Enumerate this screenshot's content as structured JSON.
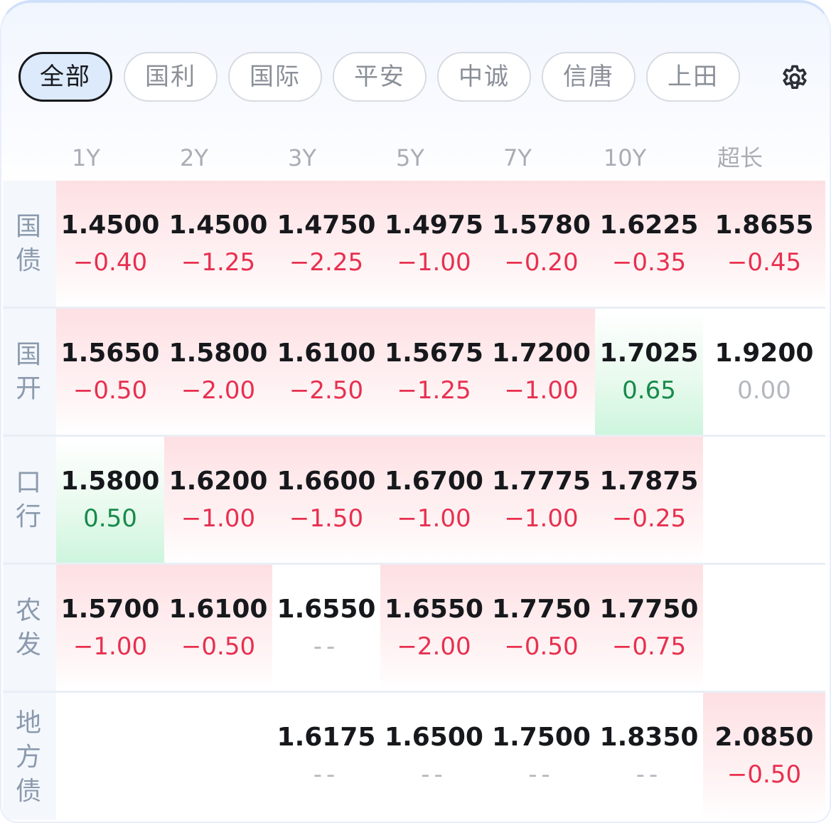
{
  "tabs": [
    {
      "label": "全部",
      "active": true
    },
    {
      "label": "国利",
      "active": false
    },
    {
      "label": "国际",
      "active": false
    },
    {
      "label": "平安",
      "active": false
    },
    {
      "label": "中诚",
      "active": false
    },
    {
      "label": "信唐",
      "active": false
    },
    {
      "label": "上田",
      "active": false
    }
  ],
  "settings_icon": "gear-icon",
  "columns": [
    "1Y",
    "2Y",
    "3Y",
    "5Y",
    "7Y",
    "10Y",
    "超长"
  ],
  "colors": {
    "down": "#e8304f",
    "up": "#178a4a",
    "flat": "#b4b8be",
    "active_tab_bg": "#dceafc"
  },
  "rows": [
    {
      "label_chars": [
        "国",
        "债"
      ],
      "cells": [
        {
          "value": "1.4500",
          "change": "−0.40",
          "trend": "down"
        },
        {
          "value": "1.4500",
          "change": "−1.25",
          "trend": "down"
        },
        {
          "value": "1.4750",
          "change": "−2.25",
          "trend": "down"
        },
        {
          "value": "1.4975",
          "change": "−1.00",
          "trend": "down"
        },
        {
          "value": "1.5780",
          "change": "−0.20",
          "trend": "down"
        },
        {
          "value": "1.6225",
          "change": "−0.35",
          "trend": "down"
        },
        {
          "value": "1.8655",
          "change": "−0.45",
          "trend": "down"
        }
      ]
    },
    {
      "label_chars": [
        "国",
        "开"
      ],
      "cells": [
        {
          "value": "1.5650",
          "change": "−0.50",
          "trend": "down"
        },
        {
          "value": "1.5800",
          "change": "−2.00",
          "trend": "down"
        },
        {
          "value": "1.6100",
          "change": "−2.50",
          "trend": "down"
        },
        {
          "value": "1.5675",
          "change": "−1.25",
          "trend": "down"
        },
        {
          "value": "1.7200",
          "change": "−1.00",
          "trend": "down"
        },
        {
          "value": "1.7025",
          "change": "0.65",
          "trend": "up"
        },
        {
          "value": "1.9200",
          "change": "0.00",
          "trend": "flat"
        }
      ]
    },
    {
      "label_chars": [
        "口",
        "行"
      ],
      "cells": [
        {
          "value": "1.5800",
          "change": "0.50",
          "trend": "up"
        },
        {
          "value": "1.6200",
          "change": "−1.00",
          "trend": "down"
        },
        {
          "value": "1.6600",
          "change": "−1.50",
          "trend": "down"
        },
        {
          "value": "1.6700",
          "change": "−1.00",
          "trend": "down"
        },
        {
          "value": "1.7775",
          "change": "−1.00",
          "trend": "down"
        },
        {
          "value": "1.7875",
          "change": "−0.25",
          "trend": "down"
        },
        null
      ]
    },
    {
      "label_chars": [
        "农",
        "发"
      ],
      "cells": [
        {
          "value": "1.5700",
          "change": "−1.00",
          "trend": "down"
        },
        {
          "value": "1.6100",
          "change": "−0.50",
          "trend": "down"
        },
        {
          "value": "1.6550",
          "change": "--",
          "trend": "none"
        },
        {
          "value": "1.6550",
          "change": "−2.00",
          "trend": "down"
        },
        {
          "value": "1.7750",
          "change": "−0.50",
          "trend": "down"
        },
        {
          "value": "1.7750",
          "change": "−0.75",
          "trend": "down"
        },
        null
      ]
    },
    {
      "label_chars": [
        "地",
        "方",
        "债"
      ],
      "cells": [
        null,
        null,
        {
          "value": "1.6175",
          "change": "--",
          "trend": "none"
        },
        {
          "value": "1.6500",
          "change": "--",
          "trend": "none"
        },
        {
          "value": "1.7500",
          "change": "--",
          "trend": "none"
        },
        {
          "value": "1.8350",
          "change": "--",
          "trend": "none"
        },
        {
          "value": "2.0850",
          "change": "−0.50",
          "trend": "down"
        }
      ]
    }
  ]
}
